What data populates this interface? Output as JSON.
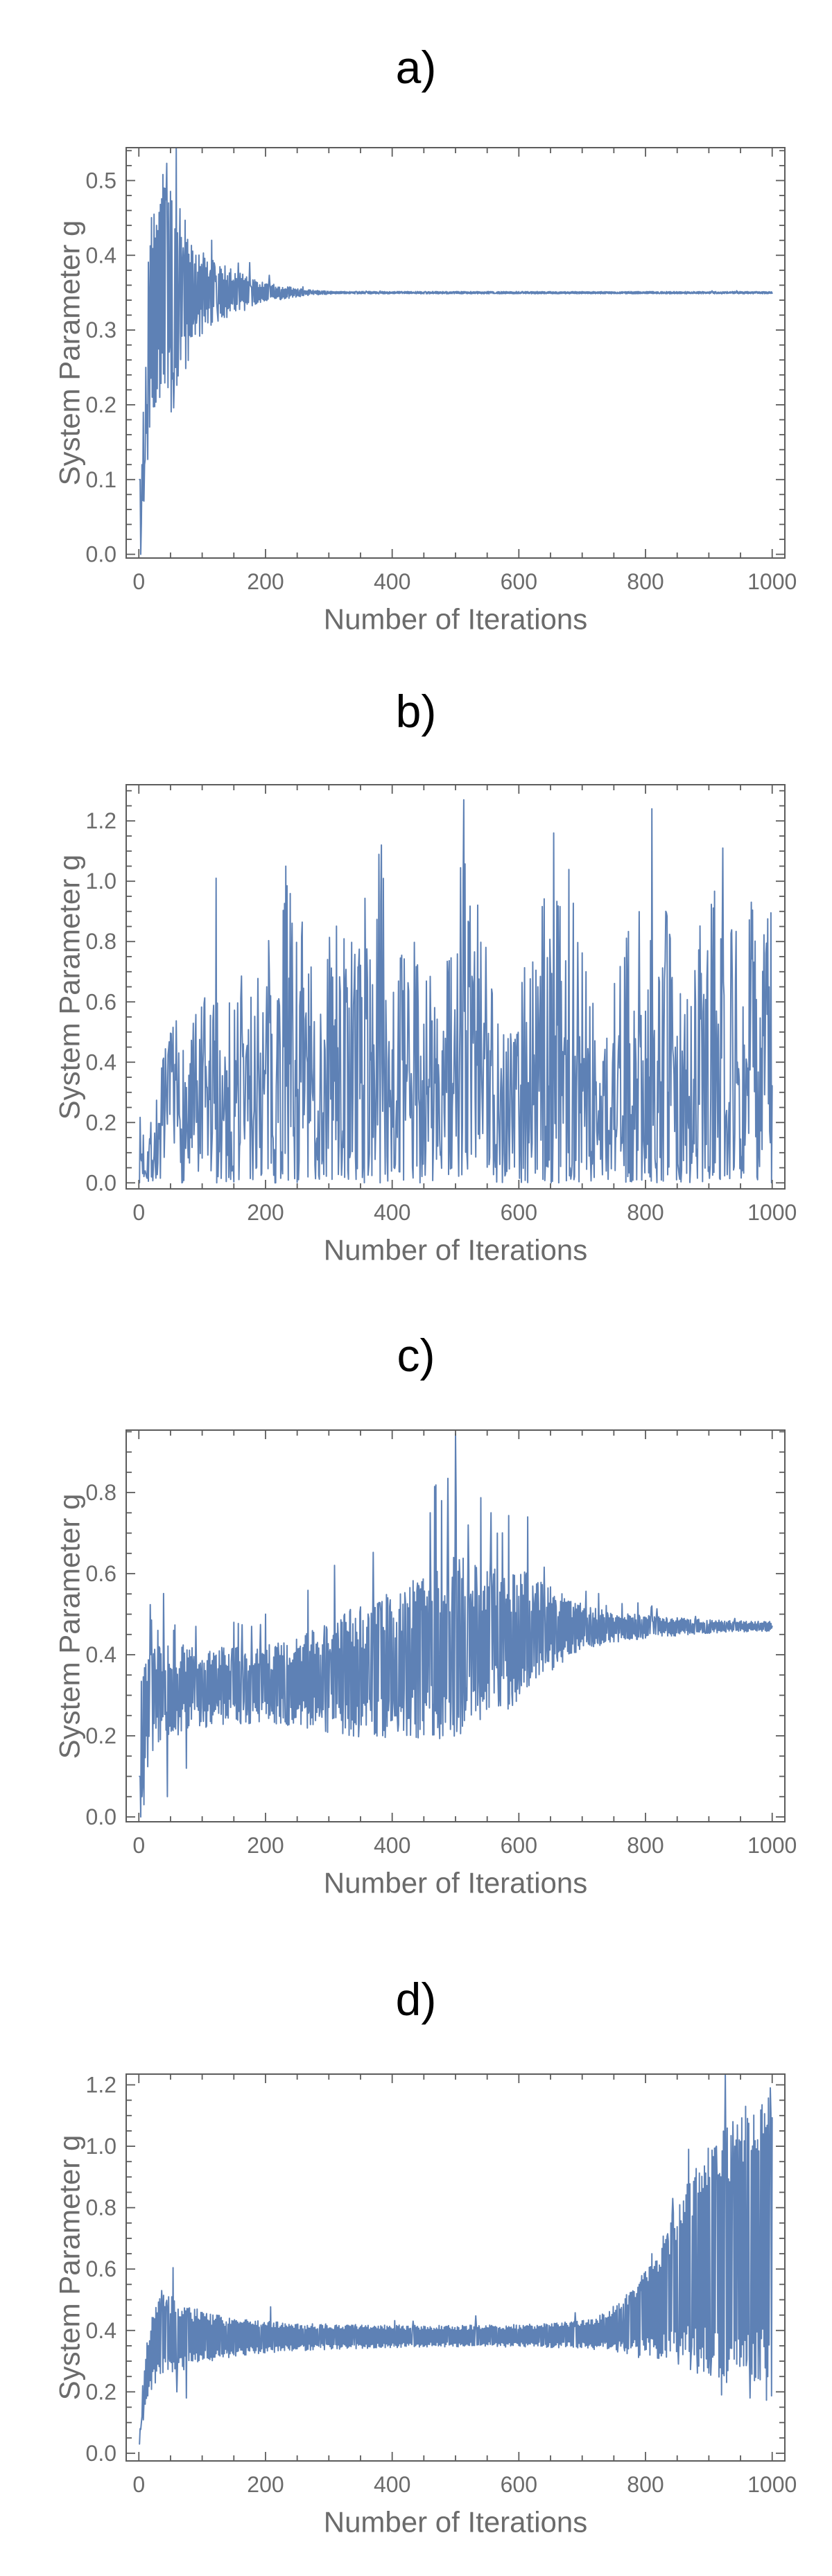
{
  "figure": {
    "background": "#ffffff",
    "text_color": "#6b6b6b",
    "frame_color": "#5c5c5c",
    "line_color": "#5e81b5"
  },
  "chart_data": [
    {
      "type": "line",
      "title": "a)",
      "xlabel": "Number of Iterations",
      "ylabel": "System Parameter g",
      "xlim": [
        -20,
        1020
      ],
      "ylim": [
        -0.005,
        0.544
      ],
      "x_points": 1000,
      "grid": false,
      "legend": false,
      "xticks": {
        "values": [
          0,
          200,
          400,
          600,
          800,
          1000
        ],
        "labels": [
          "0",
          "200",
          "400",
          "600",
          "800",
          "1000"
        ],
        "minor_step": 50
      },
      "yticks": {
        "values": [
          0,
          0.1,
          0.2,
          0.3,
          0.4,
          0.5
        ],
        "labels": [
          "0.0",
          "0.1",
          "0.2",
          "0.3",
          "0.4",
          "0.5"
        ],
        "minor_step": 0.02
      },
      "series": {
        "color": "#5e81b5",
        "mode": "alt",
        "seed": 11,
        "noise_base": 0.32,
        "flip_prob": 0.1,
        "up_spike_prob": 0.008,
        "center": [
          [
            0,
            0.1
          ],
          [
            6,
            0.13
          ],
          [
            12,
            0.24
          ],
          [
            20,
            0.3
          ],
          [
            30,
            0.34
          ],
          [
            45,
            0.35
          ],
          [
            1000,
            0.35
          ]
        ],
        "half_width": [
          [
            0,
            0.1
          ],
          [
            10,
            0.13
          ],
          [
            18,
            0.15
          ],
          [
            30,
            0.16
          ],
          [
            45,
            0.17
          ],
          [
            55,
            0.155
          ],
          [
            65,
            0.12
          ],
          [
            80,
            0.09
          ],
          [
            95,
            0.06
          ],
          [
            115,
            0.045
          ],
          [
            140,
            0.035
          ],
          [
            165,
            0.025
          ],
          [
            190,
            0.016
          ],
          [
            220,
            0.01
          ],
          [
            250,
            0.006
          ],
          [
            280,
            0.003
          ],
          [
            310,
            0.0016
          ],
          [
            1000,
            0.0015
          ]
        ],
        "spikes": [
          [
            1,
            0.1
          ],
          [
            2,
            0.1
          ],
          [
            3,
            0.0
          ],
          [
            5,
            0.12
          ],
          [
            7,
            0.19
          ],
          [
            9,
            0.12
          ],
          [
            11,
            0.25
          ],
          [
            13,
            0.2
          ],
          [
            24,
            0.455
          ],
          [
            28,
            0.44
          ],
          [
            33,
            0.21
          ],
          [
            40,
            0.49
          ],
          [
            44,
            0.523
          ],
          [
            47,
            0.47
          ],
          [
            55,
            0.196
          ],
          [
            58,
            0.25
          ],
          [
            61,
            0.43
          ],
          [
            70,
            0.41
          ],
          [
            90,
            0.4
          ],
          [
            120,
            0.385
          ]
        ],
        "description": "Chaotic transient for the first ~250 iterations (peak g ≈ 0.52 near iteration 45), then converges to the fixed point g ≈ 0.35 and stays flat to iteration 1000."
      }
    },
    {
      "type": "line",
      "title": "b)",
      "xlabel": "Number of Iterations",
      "ylabel": "System Parameter g",
      "xlim": [
        -20,
        1020
      ],
      "ylim": [
        -0.02,
        1.32
      ],
      "x_points": 1000,
      "grid": false,
      "legend": false,
      "xticks": {
        "values": [
          0,
          200,
          400,
          600,
          800,
          1000
        ],
        "labels": [
          "0",
          "200",
          "400",
          "600",
          "800",
          "1000"
        ],
        "minor_step": 50
      },
      "yticks": {
        "values": [
          0,
          0.2,
          0.4,
          0.6,
          0.8,
          1.0,
          1.2
        ],
        "labels": [
          "0.0",
          "0.2",
          "0.4",
          "0.6",
          "0.8",
          "1.0",
          "1.2"
        ],
        "minor_step": 0.05
      },
      "series": {
        "color": "#5e81b5",
        "mode": "range",
        "seed": 7,
        "bias": 1.5,
        "top_spike_prob": 0.018,
        "lower": [
          [
            0,
            0.0
          ],
          [
            1000,
            0.0
          ]
        ],
        "upper": [
          [
            0,
            0.22
          ],
          [
            25,
            0.28
          ],
          [
            40,
            0.45
          ],
          [
            60,
            0.55
          ],
          [
            80,
            0.52
          ],
          [
            100,
            0.62
          ],
          [
            118,
            0.68
          ],
          [
            122,
            1.01
          ],
          [
            130,
            0.62
          ],
          [
            150,
            0.6
          ],
          [
            160,
            0.88
          ],
          [
            175,
            0.66
          ],
          [
            200,
            0.78
          ],
          [
            220,
            0.9
          ],
          [
            232,
            1.05
          ],
          [
            245,
            0.92
          ],
          [
            258,
            0.94
          ],
          [
            275,
            0.68
          ],
          [
            290,
            0.8
          ],
          [
            305,
            0.94
          ],
          [
            320,
            0.9
          ],
          [
            340,
            0.8
          ],
          [
            360,
            0.99
          ],
          [
            383,
            1.12
          ],
          [
            395,
            1.05
          ],
          [
            410,
            0.8
          ],
          [
            425,
            0.72
          ],
          [
            440,
            0.88
          ],
          [
            455,
            0.8
          ],
          [
            470,
            0.72
          ],
          [
            485,
            0.8
          ],
          [
            500,
            0.9
          ],
          [
            513,
            1.18
          ],
          [
            525,
            1.0
          ],
          [
            540,
            0.95
          ],
          [
            555,
            0.72
          ],
          [
            570,
            0.62
          ],
          [
            585,
            0.72
          ],
          [
            600,
            0.82
          ],
          [
            615,
            0.84
          ],
          [
            630,
            0.86
          ],
          [
            645,
            1.0
          ],
          [
            655,
            1.12
          ],
          [
            668,
            1.1
          ],
          [
            680,
            1.04
          ],
          [
            695,
            0.8
          ],
          [
            710,
            0.72
          ],
          [
            725,
            0.5
          ],
          [
            740,
            0.6
          ],
          [
            755,
            0.7
          ],
          [
            770,
            0.82
          ],
          [
            785,
            0.9
          ],
          [
            800,
            0.98
          ],
          [
            812,
            1.1
          ],
          [
            825,
            1.0
          ],
          [
            840,
            0.82
          ],
          [
            855,
            0.72
          ],
          [
            870,
            0.64
          ],
          [
            885,
            0.85
          ],
          [
            900,
            0.92
          ],
          [
            915,
            1.0
          ],
          [
            925,
            1.08
          ],
          [
            940,
            0.98
          ],
          [
            955,
            0.8
          ],
          [
            968,
            1.0
          ],
          [
            982,
            0.9
          ],
          [
            1000,
            0.92
          ]
        ],
        "spikes": [
          [
            513,
            1.27
          ],
          [
            810,
            1.24
          ],
          [
            655,
            1.16
          ],
          [
            383,
            1.12
          ],
          [
            922,
            1.11
          ],
          [
            232,
            1.05
          ],
          [
            122,
            1.01
          ]
        ],
        "description": "Persistent chaos over all 1000 iterations: g fluctuates irregularly between ~0 and ~1.27 with quasi-periodic bursts; largest spikes ≈ 1.27 near iteration 513 and ≈ 1.24 near iteration 810."
      }
    },
    {
      "type": "line",
      "title": "c)",
      "xlabel": "Number of Iterations",
      "ylabel": "System Parameter g",
      "xlim": [
        -20,
        1020
      ],
      "ylim": [
        -0.012,
        0.954
      ],
      "x_points": 1000,
      "grid": false,
      "legend": false,
      "xticks": {
        "values": [
          0,
          200,
          400,
          600,
          800,
          1000
        ],
        "labels": [
          "0",
          "200",
          "400",
          "600",
          "800",
          "1000"
        ],
        "minor_step": 50
      },
      "yticks": {
        "values": [
          0,
          0.2,
          0.4,
          0.6,
          0.8
        ],
        "labels": [
          "0.0",
          "0.2",
          "0.4",
          "0.6",
          "0.8"
        ],
        "minor_step": 0.05
      },
      "series": {
        "color": "#5e81b5",
        "mode": "alt",
        "seed": 23,
        "noise_base": 0.3,
        "flip_prob": 0.12,
        "up_spike_prob": 0.02,
        "center": [
          [
            0,
            0.18
          ],
          [
            15,
            0.27
          ],
          [
            40,
            0.31
          ],
          [
            100,
            0.32
          ],
          [
            200,
            0.325
          ],
          [
            300,
            0.345
          ],
          [
            400,
            0.375
          ],
          [
            500,
            0.415
          ],
          [
            560,
            0.435
          ],
          [
            620,
            0.455
          ],
          [
            660,
            0.465
          ],
          [
            720,
            0.468
          ],
          [
            1000,
            0.47
          ]
        ],
        "half_width": [
          [
            0,
            0.16
          ],
          [
            25,
            0.14
          ],
          [
            50,
            0.12
          ],
          [
            100,
            0.1
          ],
          [
            160,
            0.095
          ],
          [
            220,
            0.1
          ],
          [
            280,
            0.13
          ],
          [
            340,
            0.16
          ],
          [
            400,
            0.185
          ],
          [
            450,
            0.21
          ],
          [
            500,
            0.23
          ],
          [
            540,
            0.21
          ],
          [
            580,
            0.18
          ],
          [
            615,
            0.15
          ],
          [
            645,
            0.11
          ],
          [
            675,
            0.08
          ],
          [
            705,
            0.055
          ],
          [
            740,
            0.04
          ],
          [
            780,
            0.032
          ],
          [
            820,
            0.026
          ],
          [
            860,
            0.021
          ],
          [
            900,
            0.017
          ],
          [
            950,
            0.014
          ],
          [
            1000,
            0.012
          ]
        ],
        "spikes": [
          [
            1,
            0.1
          ],
          [
            3,
            0.0
          ],
          [
            5,
            0.05
          ],
          [
            8,
            0.03
          ],
          [
            12,
            0.2
          ],
          [
            30,
            0.46
          ],
          [
            45,
            0.05
          ],
          [
            55,
            0.46
          ],
          [
            75,
            0.12
          ],
          [
            90,
            0.47
          ],
          [
            150,
            0.48
          ],
          [
            200,
            0.5
          ],
          [
            460,
            0.75
          ],
          [
            478,
            0.78
          ],
          [
            500,
            0.945
          ],
          [
            520,
            0.72
          ],
          [
            556,
            0.75
          ],
          [
            566,
            0.7
          ],
          [
            614,
            0.74
          ],
          [
            1000,
            0.47
          ]
        ],
        "description": "Oscillation band around g ≈ 0.32 that widens toward mid-run (maximum spike ≈ 0.95 near iteration 500), then the envelope contracts after ~620 and the series converges to g ≈ 0.47 by iteration 1000."
      }
    },
    {
      "type": "line",
      "title": "d)",
      "xlabel": "Number of Iterations",
      "ylabel": "System Parameter g",
      "xlim": [
        -20,
        1020
      ],
      "ylim": [
        -0.025,
        1.235
      ],
      "x_points": 1000,
      "grid": false,
      "legend": false,
      "xticks": {
        "values": [
          0,
          200,
          400,
          600,
          800,
          1000
        ],
        "labels": [
          "0",
          "200",
          "400",
          "600",
          "800",
          "1000"
        ],
        "minor_step": 50
      },
      "yticks": {
        "values": [
          0,
          0.2,
          0.4,
          0.6,
          0.8,
          1.0,
          1.2
        ],
        "labels": [
          "0.0",
          "0.2",
          "0.4",
          "0.6",
          "0.8",
          "1.0",
          "1.2"
        ],
        "minor_step": 0.05
      },
      "series": {
        "color": "#5e81b5",
        "mode": "alt",
        "seed": 5,
        "noise_base": 0.5,
        "flip_prob": 0.05,
        "up_spike_prob": 0.012,
        "center": [
          [
            0,
            0.1
          ],
          [
            8,
            0.2
          ],
          [
            18,
            0.32
          ],
          [
            35,
            0.39
          ],
          [
            60,
            0.38
          ],
          [
            120,
            0.377
          ],
          [
            250,
            0.379
          ],
          [
            450,
            0.381
          ],
          [
            650,
            0.383
          ],
          [
            720,
            0.39
          ],
          [
            760,
            0.41
          ],
          [
            790,
            0.44
          ],
          [
            820,
            0.49
          ],
          [
            850,
            0.55
          ],
          [
            880,
            0.6
          ],
          [
            910,
            0.63
          ],
          [
            945,
            0.65
          ],
          [
            975,
            0.66
          ],
          [
            1000,
            0.68
          ]
        ],
        "half_width": [
          [
            0,
            0.07
          ],
          [
            15,
            0.11
          ],
          [
            30,
            0.14
          ],
          [
            50,
            0.13
          ],
          [
            80,
            0.1
          ],
          [
            120,
            0.075
          ],
          [
            160,
            0.06
          ],
          [
            200,
            0.052
          ],
          [
            250,
            0.046
          ],
          [
            300,
            0.042
          ],
          [
            400,
            0.037
          ],
          [
            500,
            0.035
          ],
          [
            600,
            0.037
          ],
          [
            660,
            0.04
          ],
          [
            700,
            0.046
          ],
          [
            730,
            0.056
          ],
          [
            760,
            0.085
          ],
          [
            785,
            0.12
          ],
          [
            810,
            0.165
          ],
          [
            835,
            0.225
          ],
          [
            860,
            0.29
          ],
          [
            885,
            0.35
          ],
          [
            910,
            0.4
          ],
          [
            940,
            0.44
          ],
          [
            970,
            0.46
          ],
          [
            1000,
            0.52
          ]
        ],
        "spikes": [
          [
            1,
            0.03
          ],
          [
            2,
            0.08
          ],
          [
            4,
            0.1
          ],
          [
            6,
            0.22
          ],
          [
            8,
            0.16
          ],
          [
            36,
            0.53
          ],
          [
            60,
            0.2
          ],
          [
            75,
            0.18
          ],
          [
            775,
            0.5
          ],
          [
            793,
            0.53
          ],
          [
            810,
            0.65
          ],
          [
            843,
            0.83
          ],
          [
            868,
            0.99
          ],
          [
            912,
            1.0
          ],
          [
            920,
            0.19
          ],
          [
            938,
            1.08
          ],
          [
            958,
            1.13
          ],
          [
            965,
            0.18
          ],
          [
            997,
            1.19
          ]
        ],
        "description": "After an initial transient the oscillations damp into a narrow band around g ≈ 0.38 through iteration ~700, then the envelope grows rapidly after ~750, spanning ~0.17 to ~1.2 by iteration 1000."
      }
    }
  ]
}
